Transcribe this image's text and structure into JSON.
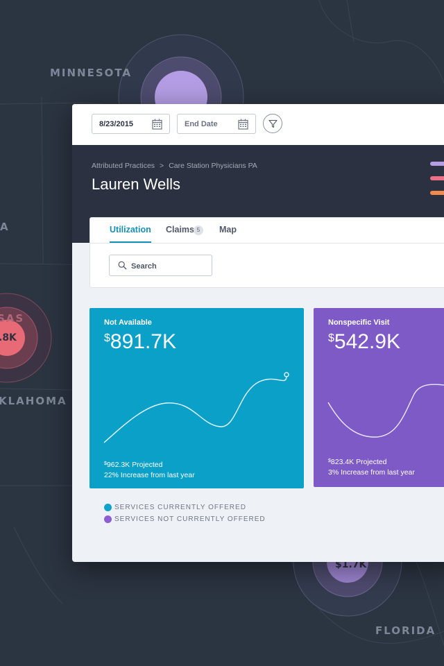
{
  "map": {
    "labels": [
      "MINNESOTA",
      "A",
      "SAS",
      "KLAHOMA",
      "FLORIDA"
    ],
    "circle_values": [
      ".8K",
      "$1.7K"
    ]
  },
  "toolbar": {
    "start_date": "8/23/2015",
    "end_date_placeholder": "End Date"
  },
  "header": {
    "breadcrumb": [
      "Attributed Practices",
      "Care Station Physicians PA"
    ],
    "breadcrumb_separator": ">",
    "title": "Lauren Wells",
    "legend_colors": [
      "#b49de4",
      "#ec6f86",
      "#f08a4b"
    ]
  },
  "tabs": [
    {
      "label": "Utilization",
      "active": true
    },
    {
      "label": "Claims",
      "badge": "5"
    },
    {
      "label": "Map"
    }
  ],
  "search": {
    "placeholder": "Search"
  },
  "cards": [
    {
      "title": "Not Available",
      "currency": "$",
      "value": "891.7K",
      "projected_currency": "$",
      "projected": "962.3K Projected",
      "change": "22% Increase from last year",
      "color": "#0aa0c8"
    },
    {
      "title": "Nonspecific Visit",
      "currency": "$",
      "value": "542.9K",
      "projected_currency": "$",
      "projected": "823.4K Projected",
      "change": "3% Increase from last year",
      "color": "#7e5ac6"
    }
  ],
  "legend": [
    {
      "label": "SERVICES CURRENTLY OFFERED",
      "color": "#10a3c9"
    },
    {
      "label": "SERVICES NOT CURRENTLY OFFERED",
      "color": "#8b5fd1"
    }
  ]
}
